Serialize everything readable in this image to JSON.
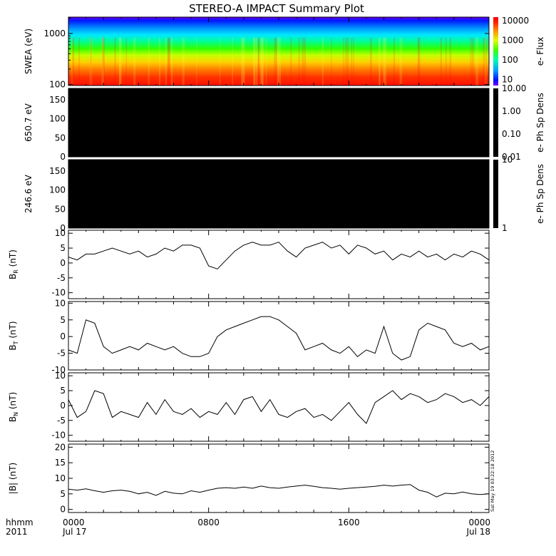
{
  "title": "STEREO-A IMPACT Summary Plot",
  "stamp": "Sat May 19 03:22:18 2012",
  "time_axis": {
    "row_label": "hhmm",
    "year": "2011",
    "ticks": [
      {
        "time": "0000",
        "date": "Jul 17",
        "hour": 0
      },
      {
        "time": "0800",
        "date": "",
        "hour": 8
      },
      {
        "time": "1600",
        "date": "",
        "hour": 16
      },
      {
        "time": "0000",
        "date": "Jul 18",
        "hour": 24
      }
    ],
    "range_hours": [
      0,
      24
    ]
  },
  "chart_data": [
    {
      "type": "heatmap",
      "ylabel": "SWEA (eV)",
      "yscale": "log",
      "ylim": [
        95,
        2100
      ],
      "yticks": [
        {
          "value": 100,
          "label": "100"
        },
        {
          "value": 1000,
          "label": "1000"
        }
      ],
      "colorbar": {
        "label": "e- Flux",
        "scale": "log",
        "range": [
          5,
          15000
        ],
        "ticks": [
          {
            "value": 10,
            "label": "10"
          },
          {
            "value": 100,
            "label": "100"
          },
          {
            "value": 1000,
            "label": "1000"
          },
          {
            "value": 10000,
            "label": "10000"
          }
        ]
      }
    },
    {
      "type": "heatmap",
      "ylabel": "650.7 eV",
      "ylim": [
        0,
        180
      ],
      "yticks": [
        {
          "value": 0,
          "label": "0"
        },
        {
          "value": 50,
          "label": "50"
        },
        {
          "value": 100,
          "label": "100"
        },
        {
          "value": 150,
          "label": "150"
        }
      ],
      "fill": "#000000",
      "colorbar": {
        "label": "e- Ph Sp Dens",
        "scale": "log",
        "range": [
          0.01,
          10
        ],
        "ticks": [
          {
            "value": 0.01,
            "label": "0.01"
          },
          {
            "value": 0.1,
            "label": "0.10"
          },
          {
            "value": 1,
            "label": "1.00"
          },
          {
            "value": 10,
            "label": "10.00"
          }
        ]
      }
    },
    {
      "type": "heatmap",
      "ylabel": "246.6 eV",
      "ylim": [
        0,
        180
      ],
      "yticks": [
        {
          "value": 0,
          "label": "0"
        },
        {
          "value": 50,
          "label": "50"
        },
        {
          "value": 100,
          "label": "100"
        },
        {
          "value": 150,
          "label": "150"
        }
      ],
      "fill": "#000000",
      "colorbar": {
        "label": "e- Ph Sp Dens",
        "scale": "log",
        "range": [
          1,
          10
        ],
        "ticks": [
          {
            "value": 1,
            "label": "1"
          },
          {
            "value": 10,
            "label": "10"
          }
        ]
      }
    },
    {
      "type": "line",
      "ylabel_main": "B",
      "ylabel_sub": "R",
      "ylabel_unit": "(nT)",
      "ylim": [
        -12,
        11
      ],
      "yticks": [
        {
          "value": -10,
          "label": "-10"
        },
        {
          "value": -5,
          "label": "-5"
        },
        {
          "value": 0,
          "label": "0"
        },
        {
          "value": 5,
          "label": "5"
        },
        {
          "value": 10,
          "label": "10"
        }
      ],
      "x": [
        0,
        0.5,
        1,
        1.5,
        2,
        2.5,
        3,
        3.5,
        4,
        4.5,
        5,
        5.5,
        6,
        6.5,
        7,
        7.5,
        8,
        8.5,
        9,
        9.5,
        10,
        10.5,
        11,
        11.5,
        12,
        12.5,
        13,
        13.5,
        14,
        14.5,
        15,
        15.5,
        16,
        16.5,
        17,
        17.5,
        18,
        18.5,
        19,
        19.5,
        20,
        20.5,
        21,
        21.5,
        22,
        22.5,
        23,
        23.5,
        24
      ],
      "y": [
        2,
        1,
        3,
        3,
        4,
        5,
        4,
        3,
        4,
        2,
        3,
        5,
        4,
        6,
        6,
        5,
        -1,
        -2,
        1,
        4,
        6,
        7,
        6,
        6,
        7,
        4,
        2,
        5,
        6,
        7,
        5,
        6,
        3,
        6,
        5,
        3,
        4,
        1,
        3,
        2,
        4,
        2,
        3,
        1,
        3,
        2,
        4,
        3,
        1
      ]
    },
    {
      "type": "line",
      "ylabel_main": "B",
      "ylabel_sub": "T",
      "ylabel_unit": "(nT)",
      "ylim": [
        -10,
        10.5
      ],
      "yticks": [
        {
          "value": -10,
          "label": "-10"
        },
        {
          "value": -5,
          "label": "-5"
        },
        {
          "value": 0,
          "label": "0"
        },
        {
          "value": 5,
          "label": "5"
        },
        {
          "value": 10,
          "label": "10"
        }
      ],
      "x": [
        0,
        0.5,
        1,
        1.5,
        2,
        2.5,
        3,
        3.5,
        4,
        4.5,
        5,
        5.5,
        6,
        6.5,
        7,
        7.5,
        8,
        8.5,
        9,
        9.5,
        10,
        10.5,
        11,
        11.5,
        12,
        12.5,
        13,
        13.5,
        14,
        14.5,
        15,
        15.5,
        16,
        16.5,
        17,
        17.5,
        18,
        18.5,
        19,
        19.5,
        20,
        20.5,
        21,
        21.5,
        22,
        22.5,
        23,
        23.5,
        24
      ],
      "y": [
        -4,
        -5,
        5,
        4,
        -3,
        -5,
        -4,
        -3,
        -4,
        -2,
        -3,
        -4,
        -3,
        -5,
        -6,
        -6,
        -5,
        0,
        2,
        3,
        4,
        5,
        6,
        6,
        5,
        3,
        1,
        -4,
        -3,
        -2,
        -4,
        -5,
        -3,
        -6,
        -4,
        -5,
        3,
        -5,
        -7,
        -6,
        2,
        4,
        3,
        2,
        -2,
        -3,
        -2,
        -4,
        -3
      ]
    },
    {
      "type": "line",
      "ylabel_main": "B",
      "ylabel_sub": "N",
      "ylabel_unit": "(nT)",
      "ylim": [
        -12,
        11
      ],
      "yticks": [
        {
          "value": -10,
          "label": "-10"
        },
        {
          "value": -5,
          "label": "-5"
        },
        {
          "value": 0,
          "label": "0"
        },
        {
          "value": 5,
          "label": "5"
        },
        {
          "value": 10,
          "label": "10"
        }
      ],
      "x": [
        0,
        0.5,
        1,
        1.5,
        2,
        2.5,
        3,
        3.5,
        4,
        4.5,
        5,
        5.5,
        6,
        6.5,
        7,
        7.5,
        8,
        8.5,
        9,
        9.5,
        10,
        10.5,
        11,
        11.5,
        12,
        12.5,
        13,
        13.5,
        14,
        14.5,
        15,
        15.5,
        16,
        16.5,
        17,
        17.5,
        18,
        18.5,
        19,
        19.5,
        20,
        20.5,
        21,
        21.5,
        22,
        22.5,
        23,
        23.5,
        24
      ],
      "y": [
        2,
        -4,
        -2,
        5,
        4,
        -4,
        -2,
        -3,
        -4,
        1,
        -3,
        2,
        -2,
        -3,
        -1,
        -4,
        -2,
        -3,
        1,
        -3,
        2,
        3,
        -2,
        2,
        -3,
        -4,
        -2,
        -1,
        -4,
        -3,
        -5,
        -2,
        1,
        -3,
        -6,
        1,
        3,
        5,
        2,
        4,
        3,
        1,
        2,
        4,
        3,
        1,
        2,
        0,
        3
      ]
    },
    {
      "type": "line",
      "ylabel_main": "|B|",
      "ylabel_sub": "",
      "ylabel_unit": "(nT)",
      "ylim": [
        -1,
        21
      ],
      "yticks": [
        {
          "value": 0,
          "label": "0"
        },
        {
          "value": 5,
          "label": "5"
        },
        {
          "value": 10,
          "label": "10"
        },
        {
          "value": 15,
          "label": "15"
        },
        {
          "value": 20,
          "label": "20"
        }
      ],
      "x": [
        0,
        0.5,
        1,
        1.5,
        2,
        2.5,
        3,
        3.5,
        4,
        4.5,
        5,
        5.5,
        6,
        6.5,
        7,
        7.5,
        8,
        8.5,
        9,
        9.5,
        10,
        10.5,
        11,
        11.5,
        12,
        12.5,
        13,
        13.5,
        14,
        14.5,
        15,
        15.5,
        16,
        16.5,
        17,
        17.5,
        18,
        18.5,
        19,
        19.5,
        20,
        20.5,
        21,
        21.5,
        22,
        22.5,
        23,
        23.5,
        24
      ],
      "y": [
        6.5,
        6.2,
        6.6,
        6,
        5.5,
        6,
        6.2,
        5.8,
        5,
        5.5,
        4.5,
        5.8,
        5.2,
        5,
        6,
        5.5,
        6.2,
        6.8,
        7,
        6.8,
        7.2,
        6.8,
        7.5,
        7,
        6.8,
        7.2,
        7.5,
        7.8,
        7.4,
        7,
        6.8,
        6.5,
        6.8,
        7,
        7.2,
        7.4,
        7.8,
        7.5,
        7.8,
        8,
        6.2,
        5.5,
        4,
        5.2,
        5,
        5.6,
        5,
        4.8,
        5
      ]
    }
  ]
}
